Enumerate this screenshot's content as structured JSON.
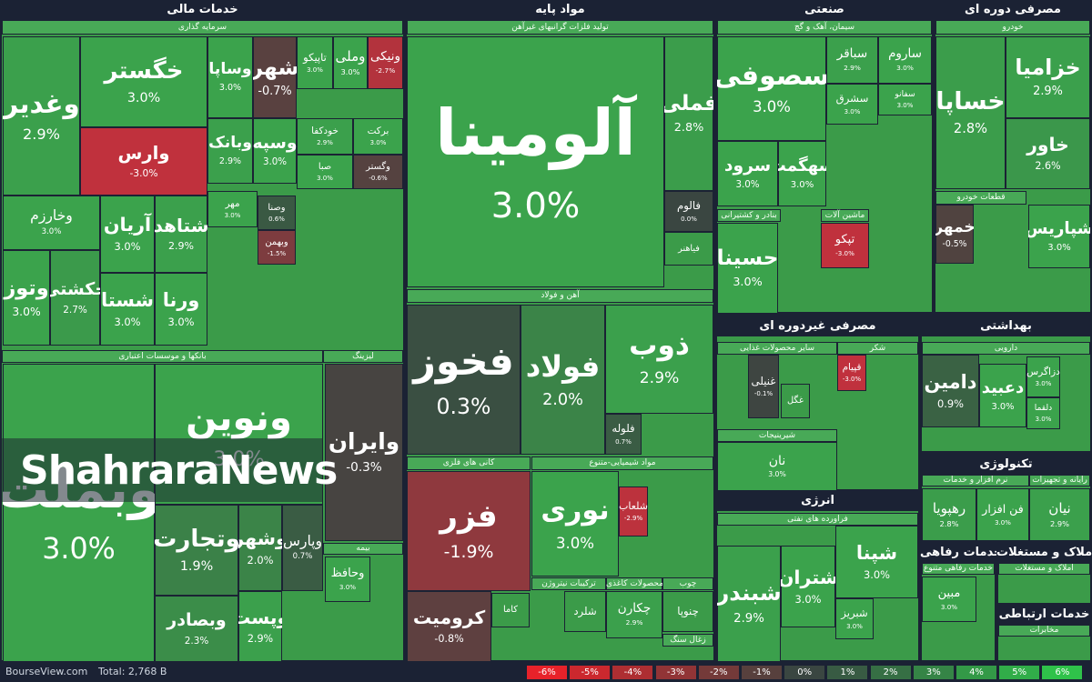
{
  "sectors": [
    {
      "title": "خدمات مالی",
      "groups": [
        {
          "title": "سرمایه گذاری",
          "tiles": [
            {
              "name": "وغدیر",
              "change": 2.9,
              "label": "2.9%"
            },
            {
              "name": "خگستر",
              "change": 3.0,
              "label": "3.0%"
            },
            {
              "name": "وارس",
              "change": -3.0,
              "label": "-3.0%"
            },
            {
              "name": "وساپا",
              "change": 3.0,
              "label": "3.0%"
            },
            {
              "name": "شهر",
              "change": -0.7,
              "label": "-0.7%"
            },
            {
              "name": "تاپیکو",
              "change": 3.0,
              "label": "3.0%"
            },
            {
              "name": "وملی",
              "change": 3.0,
              "label": "3.0%"
            },
            {
              "name": "ونیکی",
              "change": -2.7,
              "label": "-2.7%"
            },
            {
              "name": "وبانک",
              "change": 2.9,
              "label": "2.9%"
            },
            {
              "name": "وسپه",
              "change": 3.0,
              "label": "3.0%"
            },
            {
              "name": "خودکفا",
              "change": 2.9,
              "label": "2.9%"
            },
            {
              "name": "برکت",
              "change": 3.0,
              "label": "3.0%"
            },
            {
              "name": "صبا",
              "change": 3.0,
              "label": "3.0%"
            },
            {
              "name": "وگستر",
              "change": -0.6,
              "label": "-0.6%"
            },
            {
              "name": "وخارزم",
              "change": 3.0,
              "label": "3.0%"
            },
            {
              "name": "آریان",
              "change": 3.0,
              "label": "3.0%"
            },
            {
              "name": "شتاهد",
              "change": 2.9,
              "label": "2.9%"
            },
            {
              "name": "وتوز",
              "change": 3.0,
              "label": "3.0%"
            },
            {
              "name": "حکشتی",
              "change": 2.7,
              "label": "2.7%"
            },
            {
              "name": "شستا",
              "change": 3.0,
              "label": "3.0%"
            },
            {
              "name": "ورنا",
              "change": 3.0,
              "label": "3.0%"
            },
            {
              "name": "مهر",
              "change": 3.0,
              "label": "3.0%"
            },
            {
              "name": "وصنا",
              "change": 0.6,
              "label": "0.6%"
            },
            {
              "name": "وبهمن",
              "change": -1.5,
              "label": "-1.5%"
            }
          ]
        },
        {
          "title": "بانکها و موسسات اعتباری",
          "tiles": [
            {
              "name": "ونوین",
              "change": 3.0,
              "label": "3.0%"
            },
            {
              "name": "وبملت",
              "change": 3.0,
              "label": "3.0%"
            },
            {
              "name": "وتجارت",
              "change": 1.9,
              "label": "1.9%"
            },
            {
              "name": "وشهر",
              "change": 2.0,
              "label": "2.0%"
            },
            {
              "name": "وپارس",
              "change": 0.7,
              "label": "0.7%"
            },
            {
              "name": "وبصادر",
              "change": 2.3,
              "label": "2.3%"
            },
            {
              "name": "وپست",
              "change": 2.9,
              "label": "2.9%"
            }
          ]
        },
        {
          "title": "لیزینگ",
          "tiles": [
            {
              "name": "وایران",
              "change": -0.3,
              "label": "-0.3%"
            }
          ]
        },
        {
          "title": "بیمه",
          "tiles": [
            {
              "name": "وحافظ",
              "change": 3.0,
              "label": "3.0%"
            }
          ]
        }
      ]
    },
    {
      "title": "مواد پایه",
      "groups": [
        {
          "title": "تولید فلزات گرانبهای غیرآهن",
          "tiles": [
            {
              "name": "آلومینا",
              "change": 3.0,
              "label": "3.0%"
            },
            {
              "name": "فملی",
              "change": 2.8,
              "label": "2.8%"
            },
            {
              "name": "فالوم",
              "change": 0.0,
              "label": "0.0%"
            },
            {
              "name": "فیاهنر"
            }
          ]
        },
        {
          "title": "آهن و فولاد",
          "tiles": [
            {
              "name": "فخوز",
              "change": 0.3,
              "label": "0.3%"
            },
            {
              "name": "فولاد",
              "change": 2.0,
              "label": "2.0%"
            },
            {
              "name": "ذوب",
              "change": 2.9,
              "label": "2.9%"
            },
            {
              "name": "فلوله",
              "change": 0.7,
              "label": "0.7%"
            }
          ]
        },
        {
          "title": "کانی های فلزی",
          "tiles": [
            {
              "name": "فزر",
              "change": -1.9,
              "label": "-1.9%"
            },
            {
              "name": "کرومیت",
              "change": -0.8,
              "label": "-0.8%"
            },
            {
              "name": "کاما"
            }
          ]
        },
        {
          "title": "مواد شیمیایی-متنوع",
          "tiles": [
            {
              "name": "نوری",
              "change": 3.0,
              "label": "3.0%"
            },
            {
              "name": "شلعاب",
              "change": -2.9,
              "label": "-2.9%"
            }
          ]
        },
        {
          "title": "ترکیبات نیتروژن",
          "tiles": [
            {
              "name": "شلرد"
            }
          ]
        },
        {
          "title": "محصولات کاغذی",
          "tiles": [
            {
              "name": "چکارن",
              "change": 2.9,
              "label": "2.9%"
            }
          ]
        },
        {
          "title": "چوب",
          "tiles": [
            {
              "name": "چنوپا"
            }
          ]
        },
        {
          "title": "زغال سنگ",
          "tiles": []
        }
      ]
    },
    {
      "title": "صنعتی",
      "groups": [
        {
          "title": "سیمان، آهک و گچ",
          "tiles": [
            {
              "name": "سصوفی",
              "change": 3.0,
              "label": "3.0%"
            },
            {
              "name": "سباقر",
              "change": 2.9,
              "label": "2.9%"
            },
            {
              "name": "ساروم",
              "change": 3.0,
              "label": "3.0%"
            },
            {
              "name": "سشرق",
              "change": 3.0,
              "label": "3.0%"
            },
            {
              "name": "سفانو",
              "change": 3.0,
              "label": "3.0%"
            },
            {
              "name": "سرود",
              "change": 3.0,
              "label": "3.0%"
            },
            {
              "name": "سهگمت",
              "change": 3.0,
              "label": "3.0%"
            }
          ]
        },
        {
          "title": "بنادر و کشتیرانی",
          "tiles": [
            {
              "name": "حسینا",
              "change": 3.0,
              "label": "3.0%"
            }
          ]
        },
        {
          "title": "ماشین آلات",
          "tiles": [
            {
              "name": "تپکو",
              "change": -3.0,
              "label": "-3.0%"
            }
          ]
        }
      ]
    },
    {
      "title": "مصرفی دوره ای",
      "groups": [
        {
          "title": "خودرو",
          "tiles": [
            {
              "name": "خساپا",
              "change": 2.8,
              "label": "2.8%"
            },
            {
              "name": "خزامیا",
              "change": 2.9,
              "label": "2.9%"
            },
            {
              "name": "خاور",
              "change": 2.6,
              "label": "2.6%"
            }
          ]
        },
        {
          "title": "قطعات خودرو",
          "tiles": [
            {
              "name": "خمهر",
              "change": -0.5,
              "label": "-0.5%"
            }
          ]
        },
        {
          "tiles": [
            {
              "name": "شپاریس",
              "change": 3.0,
              "label": "3.0%"
            }
          ]
        }
      ]
    },
    {
      "title": "مصرفی غیردوره ای",
      "groups": [
        {
          "title": "سایر محصولات غذایی",
          "tiles": [
            {
              "name": "غنیلی",
              "change": -0.1,
              "label": "-0.1%"
            },
            {
              "name": "غگل"
            }
          ]
        },
        {
          "title": "شکر",
          "tiles": [
            {
              "name": "قپیام",
              "change": -3.0,
              "label": "-3.0%"
            }
          ]
        },
        {
          "title": "شیرینیجات",
          "tiles": [
            {
              "name": "نان",
              "change": 3.0,
              "label": "3.0%"
            }
          ]
        }
      ]
    },
    {
      "title": "بهداشتی",
      "groups": [
        {
          "title": "دارویی",
          "tiles": [
            {
              "name": "دامین",
              "change": 0.9,
              "label": "0.9%"
            },
            {
              "name": "دعبید",
              "change": 3.0,
              "label": "3.0%"
            },
            {
              "name": "دزاگرس",
              "change": 3.0,
              "label": "3.0%"
            },
            {
              "name": "دلقما",
              "change": 3.0,
              "label": "3.0%"
            }
          ]
        }
      ]
    },
    {
      "title": "تکنولوژی",
      "groups": [
        {
          "title": "نرم افزار و خدمات",
          "tiles": [
            {
              "name": "رهپویا",
              "change": 2.8,
              "label": "2.8%"
            },
            {
              "name": "فن افزار",
              "change": 3.0,
              "label": "3.0%"
            }
          ]
        },
        {
          "title": "رایانه و تجهیزات",
          "tiles": [
            {
              "name": "نیان",
              "change": 2.9,
              "label": "2.9%"
            }
          ]
        }
      ]
    },
    {
      "title": "انرژی",
      "groups": [
        {
          "title": "فراورده های نفتی",
          "tiles": [
            {
              "name": "شپنا",
              "change": 3.0,
              "label": "3.0%"
            },
            {
              "name": "شبندر",
              "change": 2.9,
              "label": "2.9%"
            },
            {
              "name": "شتران",
              "change": 3.0,
              "label": "3.0%"
            },
            {
              "name": "شبریز",
              "change": 3.0,
              "label": "3.0%"
            }
          ]
        }
      ]
    },
    {
      "title": "خدمات رفاهی",
      "groups": [
        {
          "title": "خدمات رفاهی متنوع",
          "tiles": [
            {
              "name": "مبین",
              "change": 3.0,
              "label": "3.0%"
            }
          ]
        }
      ]
    },
    {
      "title": "املاک و مستغلات",
      "groups": [
        {
          "title": "املاک و مستغلات",
          "tiles": []
        }
      ]
    },
    {
      "title": "خدمات ارتباطی",
      "groups": [
        {
          "title": "مخابرات",
          "tiles": []
        }
      ]
    }
  ],
  "watermark": "ShahraraNews",
  "footer": {
    "brand": "BourseView.com",
    "total": "Total: 2,768 B",
    "legend": [
      {
        "value": -6,
        "label": "-6%"
      },
      {
        "value": -5,
        "label": "-5%"
      },
      {
        "value": -4,
        "label": "-4%"
      },
      {
        "value": -3,
        "label": "-3%"
      },
      {
        "value": -2,
        "label": "-2%"
      },
      {
        "value": -1,
        "label": "-1%"
      },
      {
        "value": 0,
        "label": "0%"
      },
      {
        "value": 1,
        "label": "1%"
      },
      {
        "value": 2,
        "label": "2%"
      },
      {
        "value": 3,
        "label": "3%"
      },
      {
        "value": 4,
        "label": "4%"
      },
      {
        "value": 5,
        "label": "5%"
      },
      {
        "value": 6,
        "label": "6%"
      }
    ]
  }
}
